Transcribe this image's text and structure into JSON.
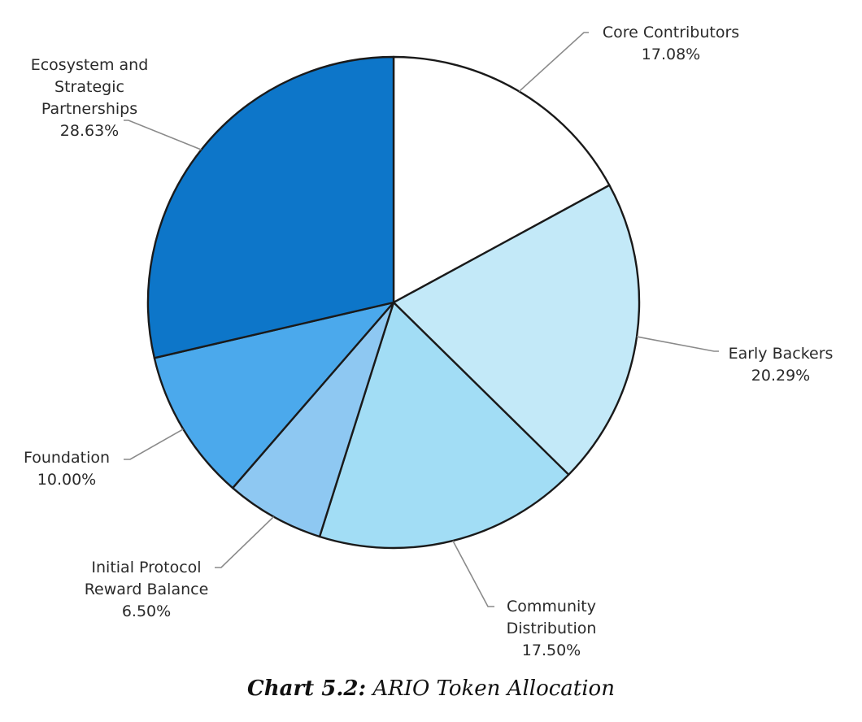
{
  "chart_data": {
    "type": "pie",
    "title": "Chart 5.2: ARIO Token Allocation",
    "caption_prefix": "Chart 5.2:",
    "caption_text": "ARIO Token Allocation",
    "start_angle": "12 o'clock, clockwise",
    "slices": [
      {
        "label": "Core Contributors",
        "label_lines": [
          "Core Contributors"
        ],
        "value": 17.08,
        "value_text": "17.08%",
        "color": "#ffffff"
      },
      {
        "label": "Early Backers",
        "label_lines": [
          "Early Backers"
        ],
        "value": 20.29,
        "value_text": "20.29%",
        "color": "#c3e9f8"
      },
      {
        "label": "Community Distribution",
        "label_lines": [
          "Community",
          "Distribution"
        ],
        "value": 17.5,
        "value_text": "17.50%",
        "color": "#a2ddf5"
      },
      {
        "label": "Initial Protocol Reward Balance",
        "label_lines": [
          "Initial Protocol",
          "Reward Balance"
        ],
        "value": 6.5,
        "value_text": "6.50%",
        "color": "#8ec8f2"
      },
      {
        "label": "Foundation",
        "label_lines": [
          "Foundation"
        ],
        "value": 10.0,
        "value_text": "10.00%",
        "color": "#4ba9ec"
      },
      {
        "label": "Ecosystem and Strategic Partnerships",
        "label_lines": [
          "Ecosystem and",
          "Strategic",
          "Partnerships"
        ],
        "value": 28.63,
        "value_text": "28.63%",
        "color": "#0d76c9"
      }
    ]
  }
}
